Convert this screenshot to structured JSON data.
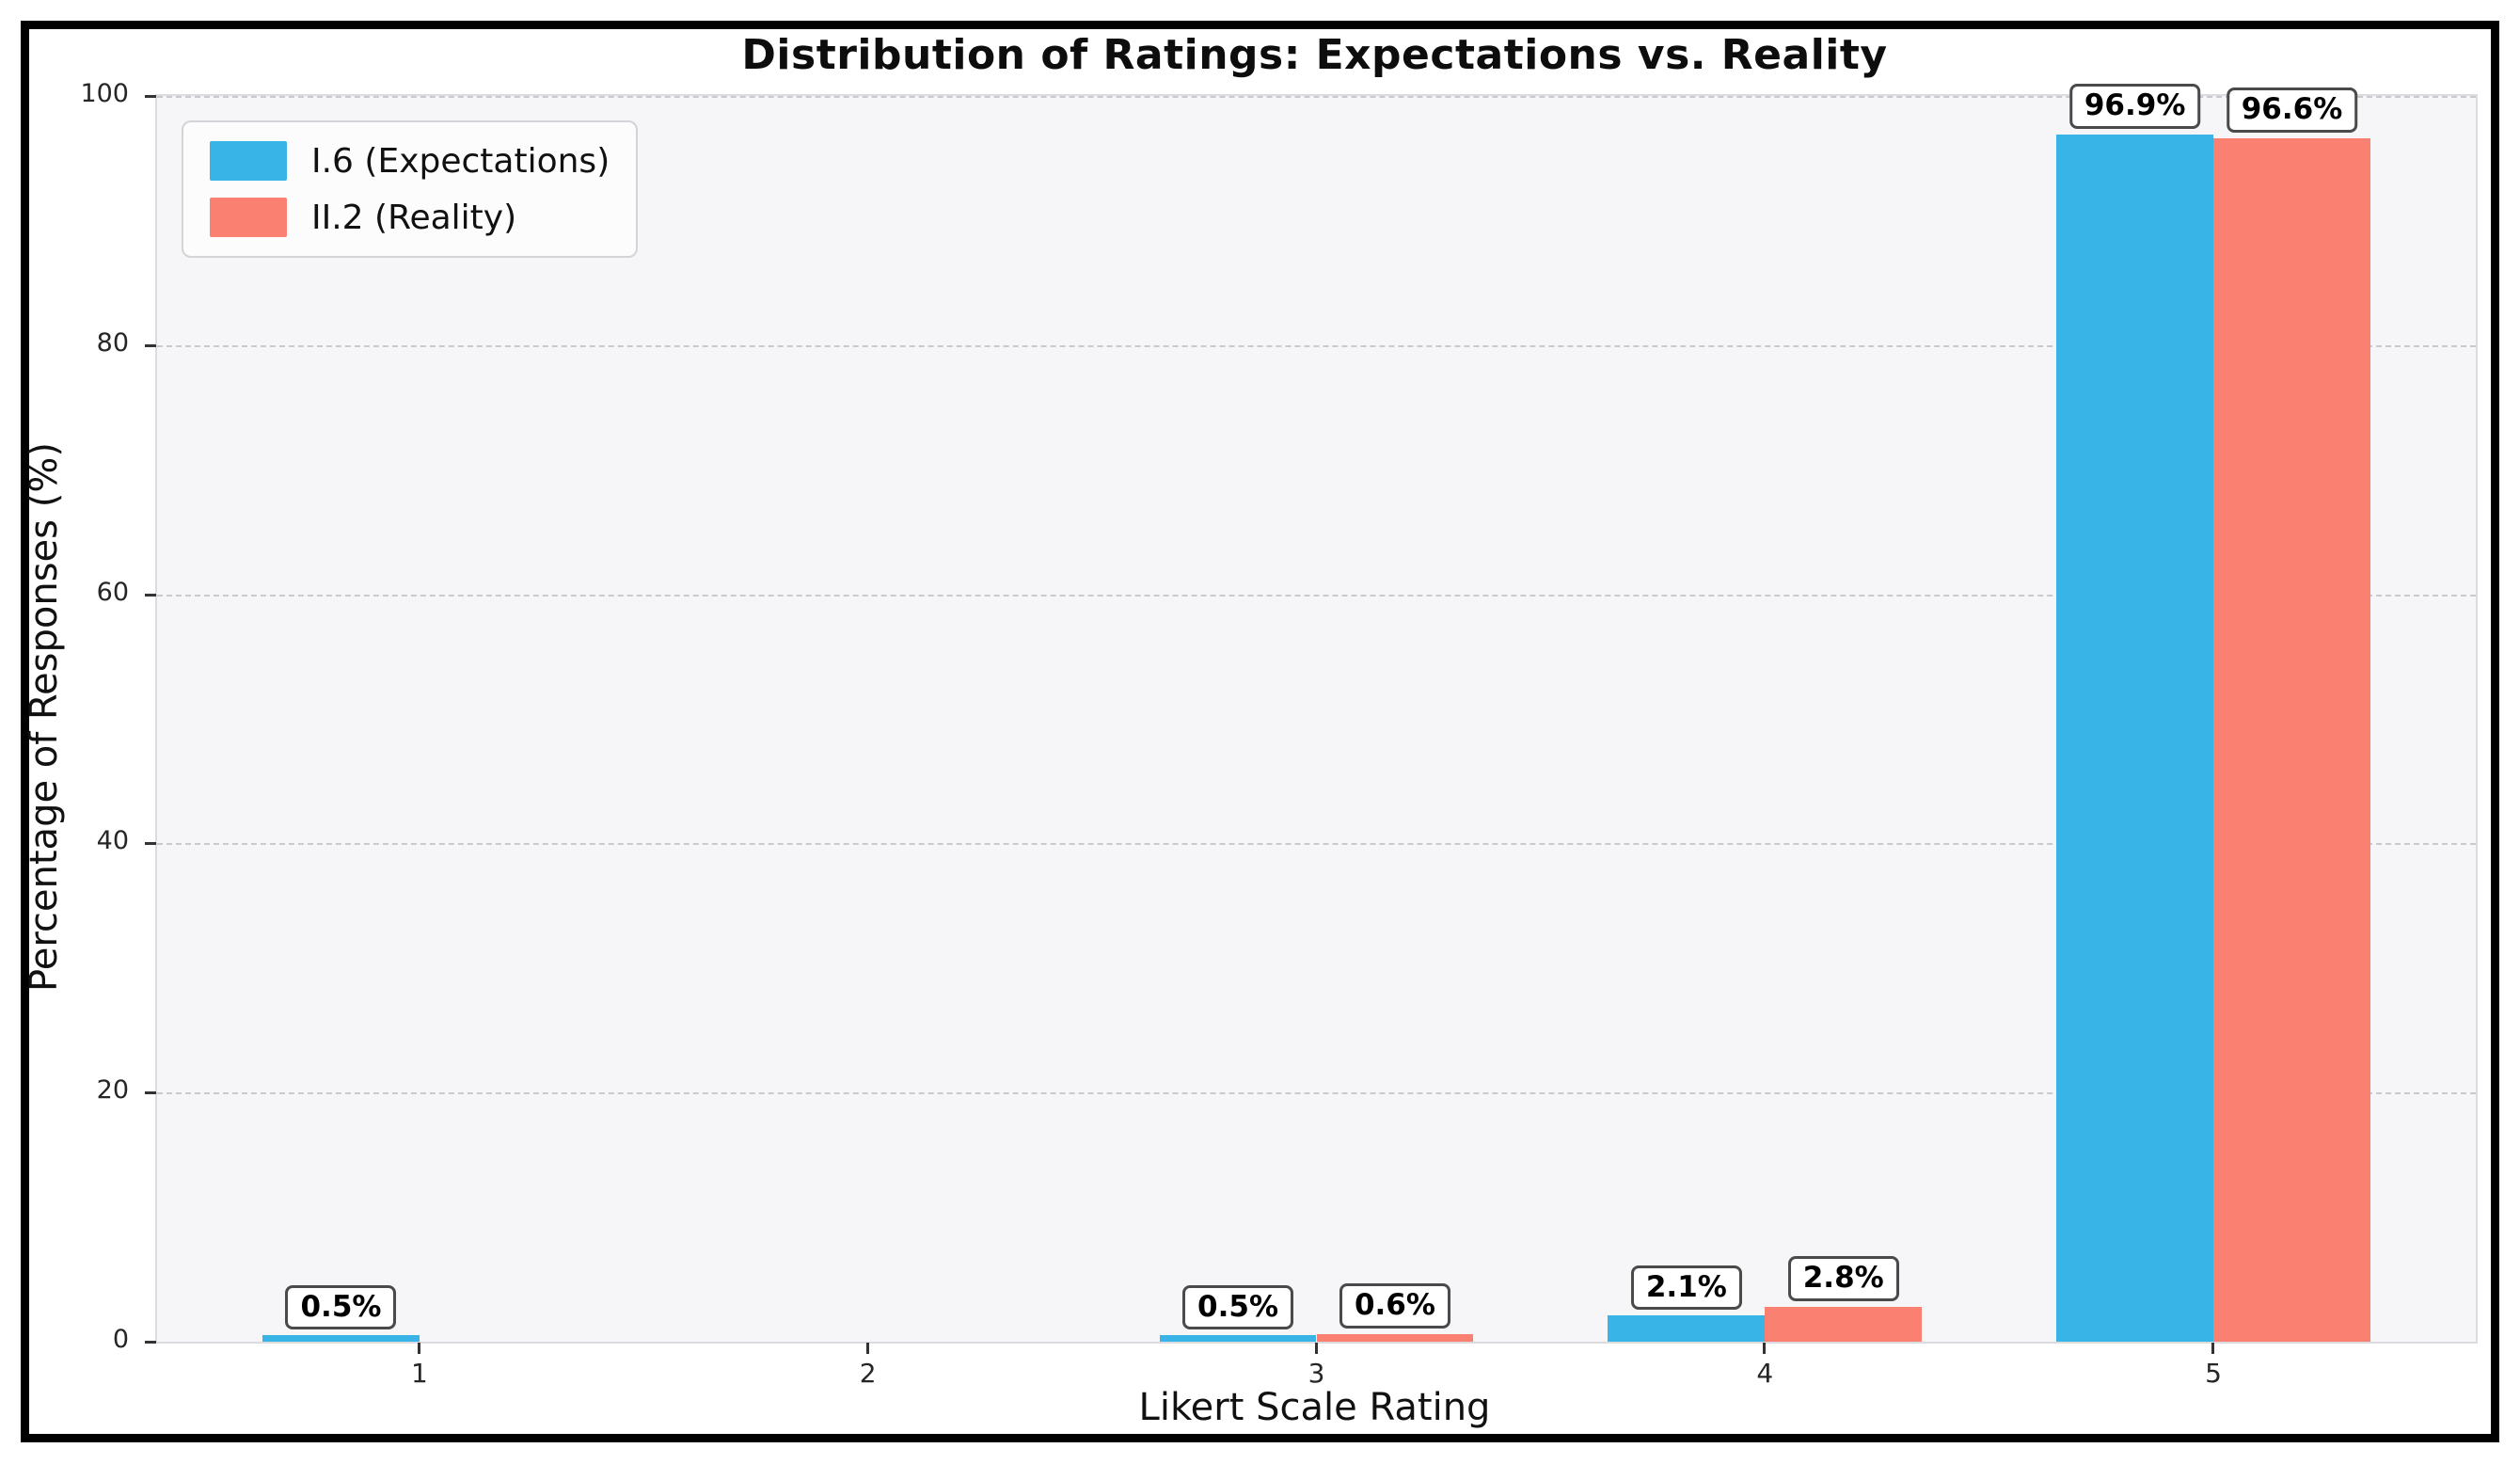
{
  "figure": {
    "frame_color": "#000000",
    "background": "#ffffff",
    "plot_background": "#f6f6f8",
    "gridline_color": "#c9cace",
    "tick_color": "#333333"
  },
  "chart_data": {
    "type": "bar",
    "title": "Distribution of Ratings: Expectations vs. Reality",
    "xlabel": "Likert Scale Rating",
    "ylabel": "Percentage of Responses (%)",
    "categories": [
      "1",
      "2",
      "3",
      "4",
      "5"
    ],
    "x_values": [
      1,
      2,
      3,
      4,
      5
    ],
    "y_ticks": [
      0,
      20,
      40,
      60,
      80,
      100
    ],
    "ylim": [
      0,
      100
    ],
    "xlim": [
      0.415,
      5.585
    ],
    "bar_width": 0.35,
    "grid": "horizontal dashed",
    "legend_position": "upper left",
    "series": [
      {
        "name": "I.6 (Expectations)",
        "color": "#38B4E6",
        "values": [
          0.5,
          0.0,
          0.5,
          2.1,
          96.9
        ],
        "bar_labels": [
          "0.5%",
          "",
          "0.5%",
          "2.1%",
          "96.9%"
        ]
      },
      {
        "name": "II.2 (Reality)",
        "color": "#FA8072",
        "values": [
          0.0,
          0.0,
          0.6,
          2.8,
          96.6
        ],
        "bar_labels": [
          "",
          "",
          "0.6%",
          "2.8%",
          "96.6%"
        ]
      }
    ]
  }
}
